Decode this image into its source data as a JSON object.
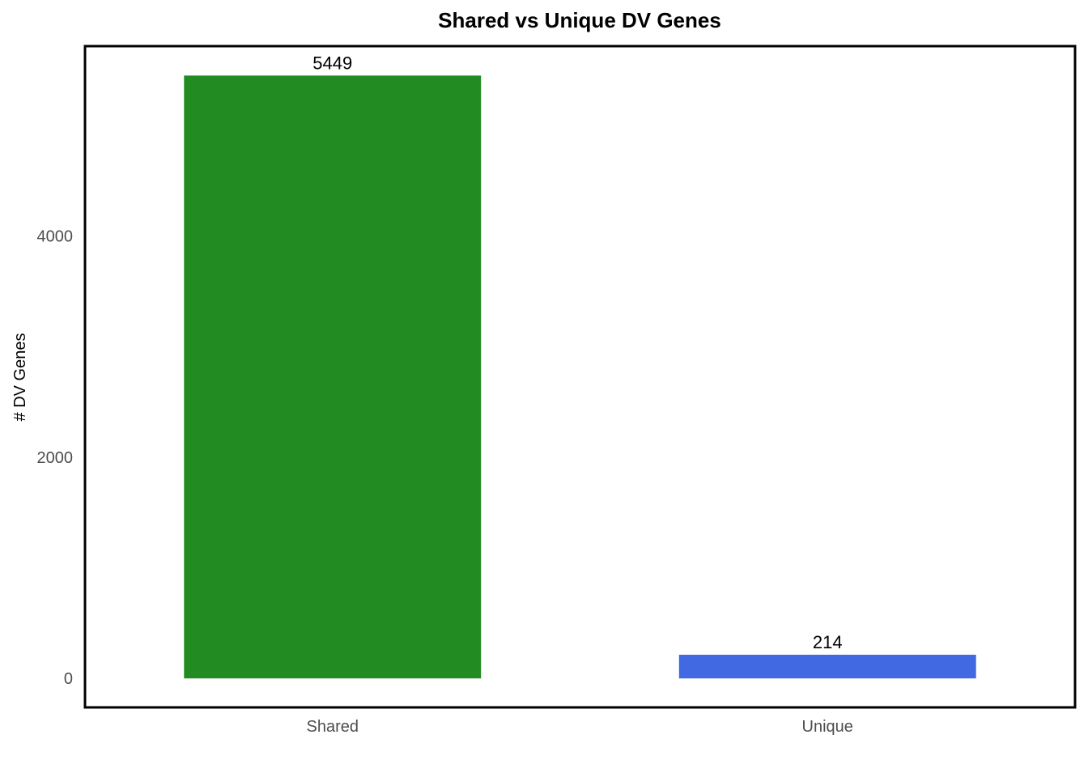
{
  "chart_data": {
    "type": "bar",
    "title": "Shared vs Unique DV Genes",
    "xlabel": "",
    "ylabel": "# DV Genes",
    "categories": [
      "Shared",
      "Unique"
    ],
    "values": [
      5449,
      214
    ],
    "data_labels": [
      "5449",
      "214"
    ],
    "colors": [
      "#228b22",
      "#4169e1"
    ],
    "yticks": [
      0,
      2000,
      4000
    ],
    "ytick_labels": [
      "0",
      "2000",
      "4000"
    ],
    "ylim": [
      -262,
      5715
    ],
    "grid": false,
    "legend": "none"
  }
}
